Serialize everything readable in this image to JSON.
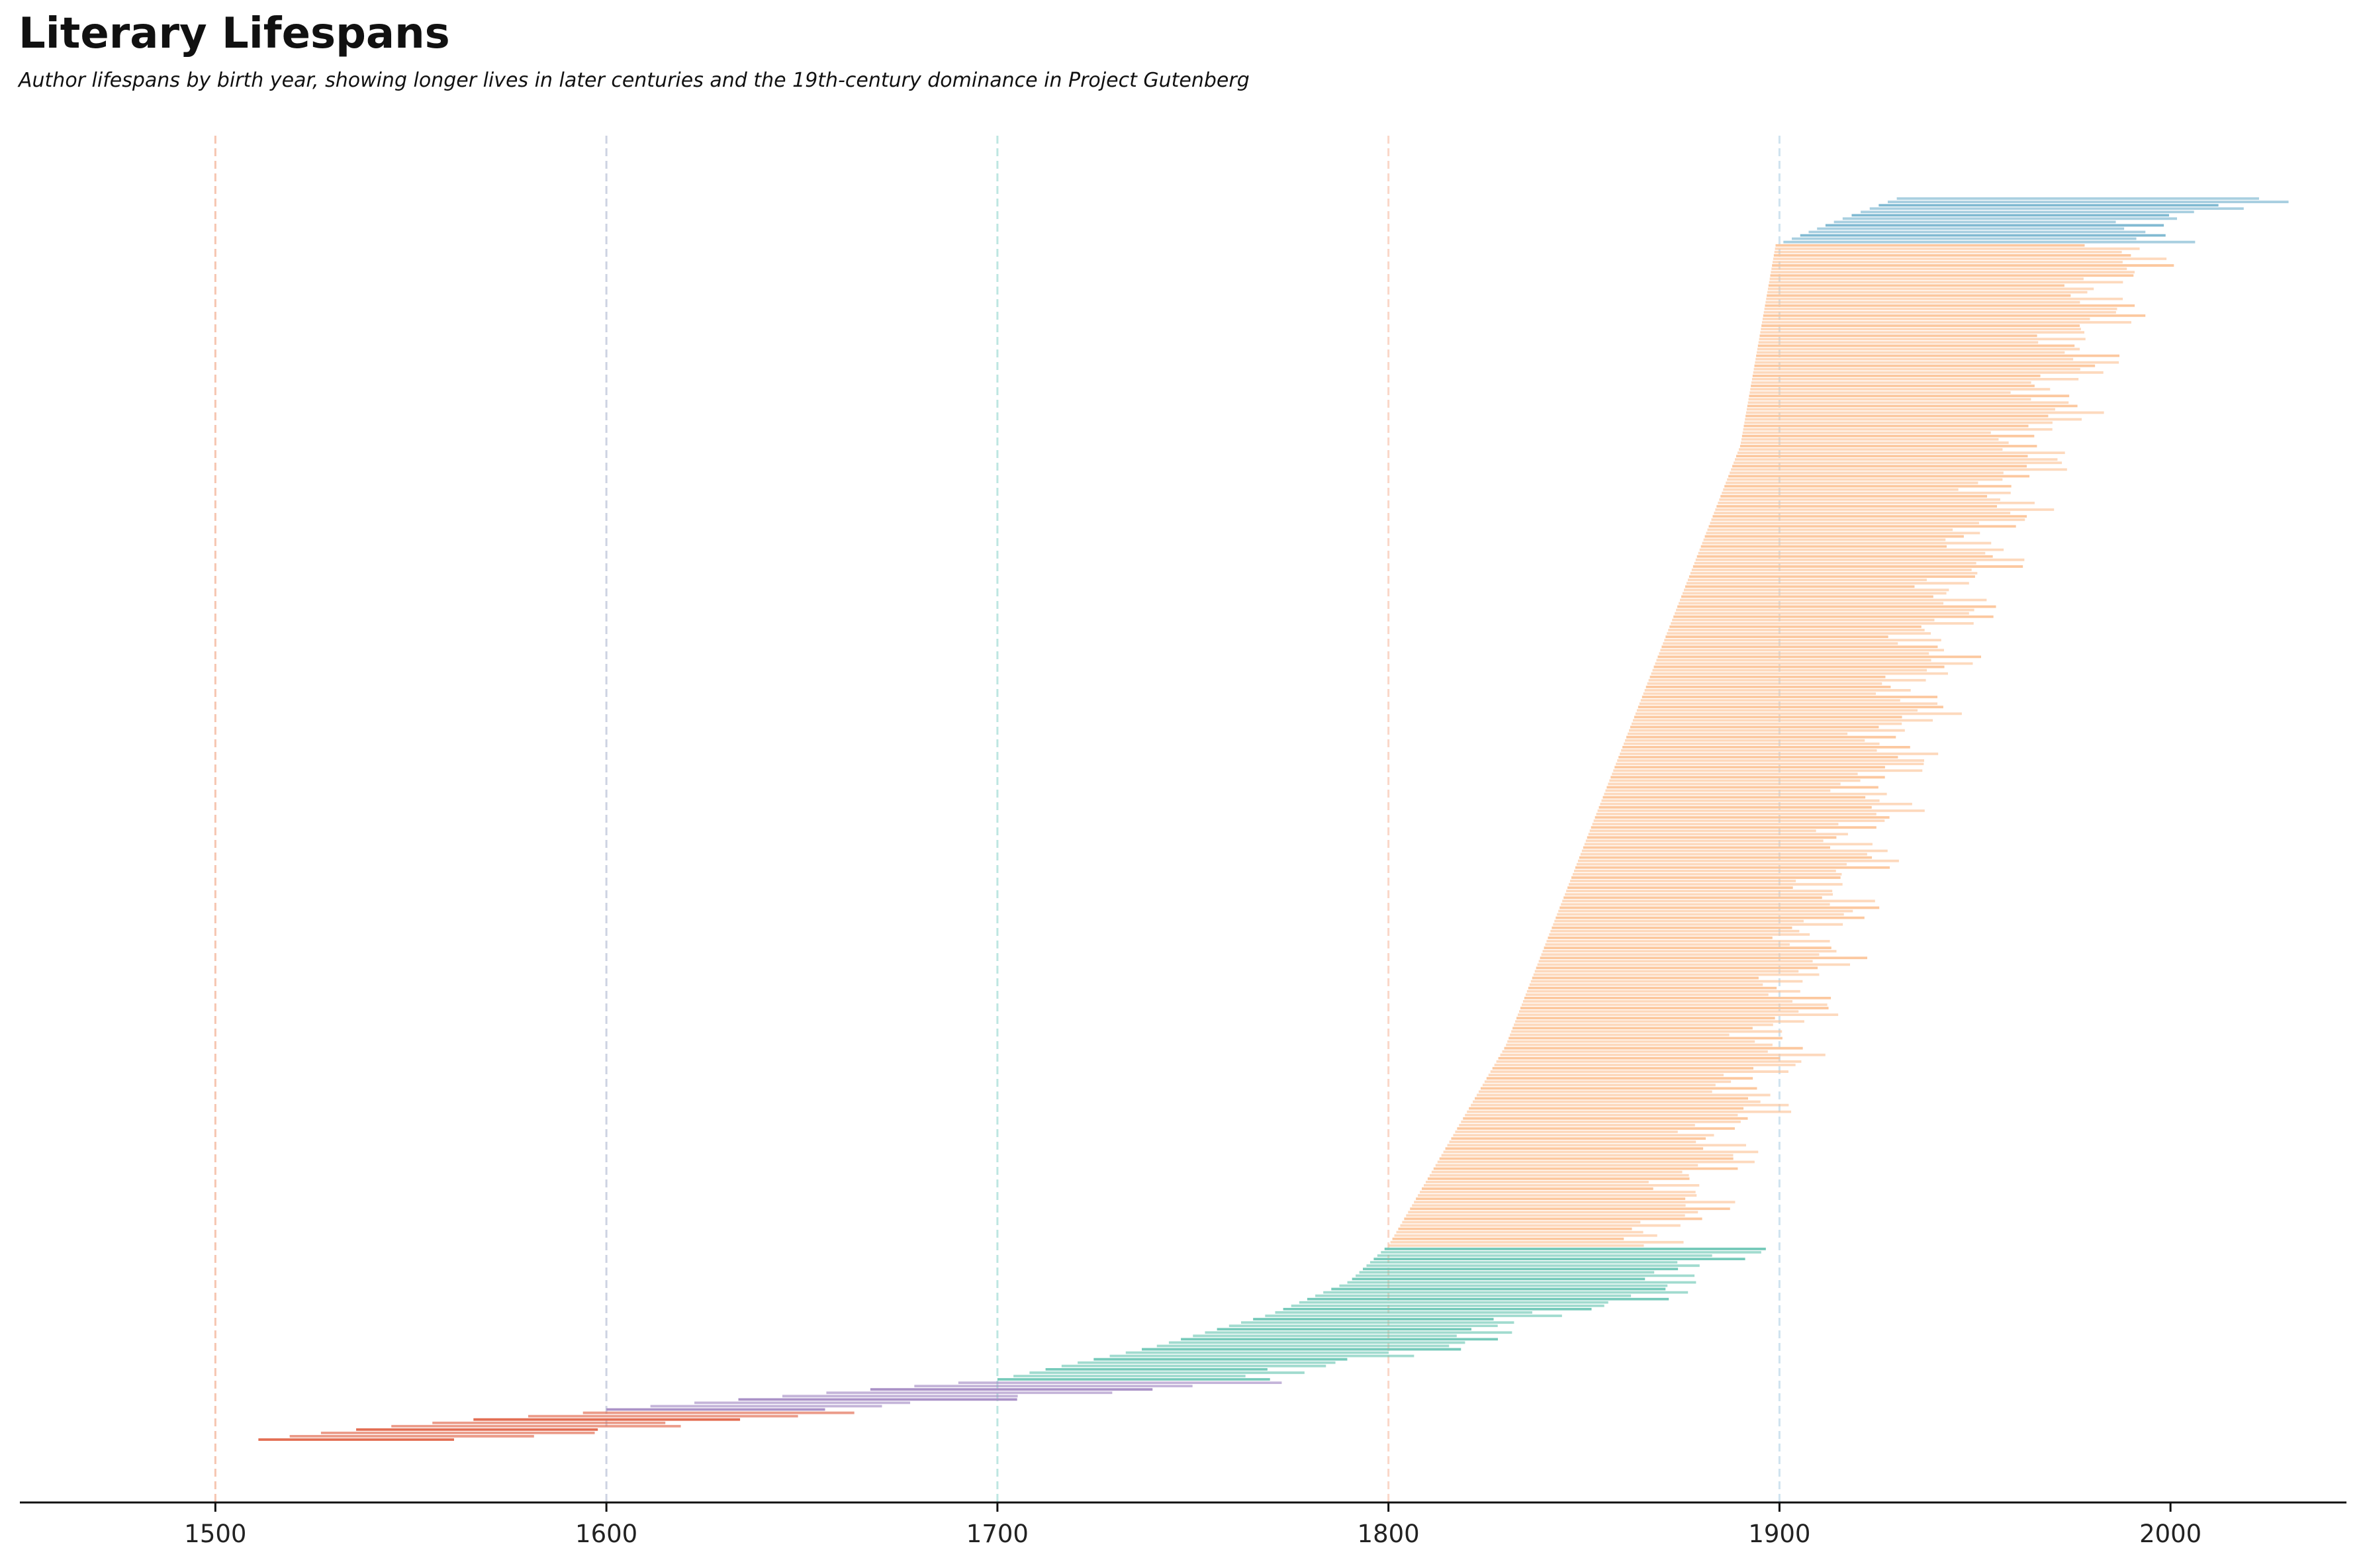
{
  "chart_data": {
    "type": "bar",
    "orientation": "horizontal-range",
    "title": "Literary Lifespans",
    "subtitle": "Author lifespans by birth year, showing longer lives in later centuries and the 19th-century dominance in Project Gutenberg",
    "xlabel": "",
    "ylabel": "",
    "xlim": [
      1450,
      2045
    ],
    "x_ticks": [
      "1500",
      "1600",
      "1700",
      "1800",
      "1900",
      "2000"
    ],
    "century_lines": [
      1500,
      1600,
      1700,
      1800,
      1900
    ],
    "grid": false,
    "legend": "none",
    "sorted_by": "birth year",
    "groups": [
      {
        "key": "16th",
        "from": 1500,
        "to": 1600,
        "color": "#e1664a",
        "line_color": "#f6c6b2",
        "count": 9,
        "samples": [
          {
            "born": 1511,
            "died": 1573
          },
          {
            "born": 1527,
            "died": 1600
          },
          {
            "born": 1545,
            "died": 1612
          },
          {
            "born": 1566,
            "died": 1625
          },
          {
            "born": 1594,
            "died": 1660
          }
        ]
      },
      {
        "key": "17th",
        "from": 1600,
        "to": 1700,
        "color": "#a58cc4",
        "line_color": "#cdd3e2",
        "count": 9,
        "samples": [
          {
            "born": 1600,
            "died": 1660
          },
          {
            "born": 1630,
            "died": 1700
          },
          {
            "born": 1660,
            "died": 1730
          },
          {
            "born": 1690,
            "died": 1760
          }
        ]
      },
      {
        "key": "18th",
        "from": 1700,
        "to": 1800,
        "color": "#6fc7b6",
        "line_color": "#bde6e1",
        "count": 40,
        "samples": [
          {
            "born": 1700,
            "died": 1770
          },
          {
            "born": 1740,
            "died": 1810
          },
          {
            "born": 1770,
            "died": 1845
          },
          {
            "born": 1790,
            "died": 1875
          },
          {
            "born": 1799,
            "died": 1889
          }
        ]
      },
      {
        "key": "19th",
        "from": 1800,
        "to": 1900,
        "color": "#fcc59a",
        "line_color": "#fad7c8",
        "count": 300,
        "samples": [
          {
            "born": 1800,
            "died": 1870
          },
          {
            "born": 1830,
            "died": 1900
          },
          {
            "born": 1850,
            "died": 1920
          },
          {
            "born": 1870,
            "died": 1940
          },
          {
            "born": 1890,
            "died": 1965
          },
          {
            "born": 1899,
            "died": 1990
          }
        ]
      },
      {
        "key": "20th",
        "from": 1900,
        "to": 2000,
        "color": "#7ab6d0",
        "line_color": "#cfe3ef",
        "count": 14,
        "samples": [
          {
            "born": 1901,
            "died": 1995
          },
          {
            "born": 1915,
            "died": 2000
          },
          {
            "born": 1930,
            "died": 2020
          }
        ]
      }
    ]
  }
}
